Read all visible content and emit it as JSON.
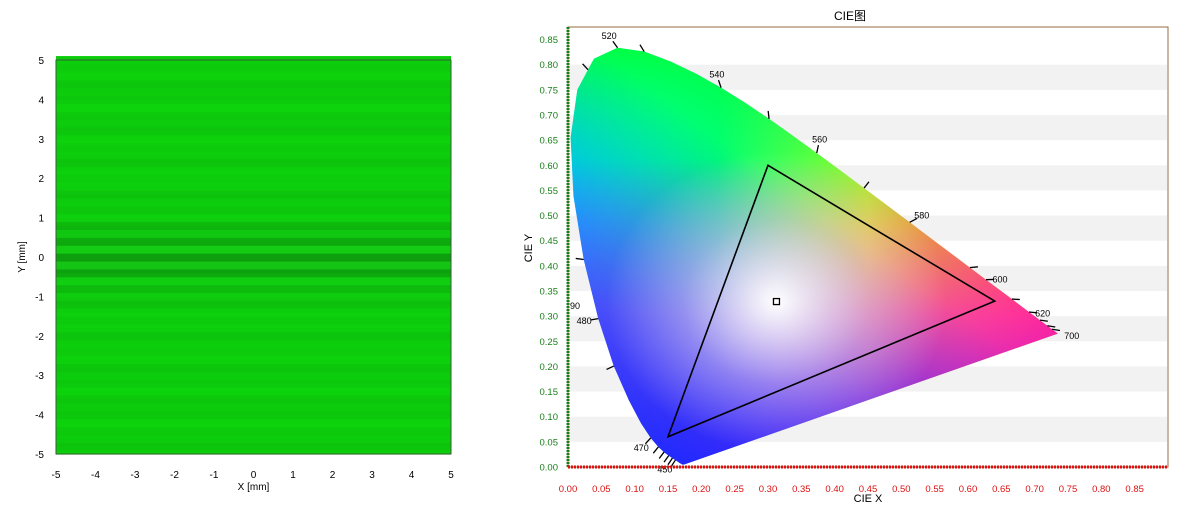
{
  "colors": {
    "field_green": "#0fd10f",
    "axis_green": "#1a7f1a",
    "axis_red": "#dd1111",
    "plot_border": "#8b5a2b",
    "band_gray": "#f2f2f2",
    "triangle": "#000000"
  },
  "chart_data": [
    {
      "type": "heatmap",
      "title": "",
      "xlabel": "X [mm]",
      "ylabel": "Y [mm]",
      "xlim": [
        -5,
        5
      ],
      "ylim": [
        -5,
        5
      ],
      "x_ticks": [
        "-5",
        "-4",
        "-3",
        "-2",
        "-1",
        "0",
        "1",
        "2",
        "3",
        "4",
        "5"
      ],
      "y_ticks": [
        "5",
        "4",
        "3",
        "2",
        "1",
        "0",
        "-1",
        "-2",
        "-3",
        "-4",
        "-5"
      ],
      "description_values": {
        "field_color": "green",
        "fringe_band_center_y_mm": 0,
        "fringe_band_half_width_mm": 0.8
      }
    },
    {
      "type": "scatter",
      "title": "CIE图",
      "xlabel": "CIE X",
      "ylabel": "CIE Y",
      "xlim": [
        0,
        0.9
      ],
      "ylim": [
        0,
        0.875
      ],
      "x_ticks": [
        "0.00",
        "0.05",
        "0.10",
        "0.15",
        "0.20",
        "0.25",
        "0.30",
        "0.35",
        "0.40",
        "0.45",
        "0.50",
        "0.55",
        "0.60",
        "0.65",
        "0.70",
        "0.75",
        "0.80",
        "0.85"
      ],
      "y_ticks": [
        "0.00",
        "0.05",
        "0.10",
        "0.15",
        "0.20",
        "0.25",
        "0.30",
        "0.35",
        "0.40",
        "0.45",
        "0.50",
        "0.55",
        "0.60",
        "0.65",
        "0.70",
        "0.75",
        "0.80",
        "0.85"
      ],
      "wavelength_labels": [
        {
          "text": "520",
          "x": 0.074,
          "y": 0.834
        },
        {
          "text": "540",
          "x": 0.23,
          "y": 0.754
        },
        {
          "text": "560",
          "x": 0.373,
          "y": 0.624
        },
        {
          "text": "580",
          "x": 0.512,
          "y": 0.487
        },
        {
          "text": "600",
          "x": 0.627,
          "y": 0.372
        },
        {
          "text": "620",
          "x": 0.691,
          "y": 0.308
        },
        {
          "text": "700",
          "x": 0.735,
          "y": 0.265
        },
        {
          "text": "90",
          "x": 0.0,
          "y": 0.32
        },
        {
          "text": "480",
          "x": 0.045,
          "y": 0.295
        },
        {
          "text": "470",
          "x": 0.124,
          "y": 0.058
        },
        {
          "text": "450",
          "x": 0.157,
          "y": 0.018
        }
      ],
      "gamut_triangle": {
        "red": {
          "x": 0.64,
          "y": 0.33
        },
        "green": {
          "x": 0.3,
          "y": 0.6
        },
        "blue": {
          "x": 0.15,
          "y": 0.06
        }
      },
      "point": {
        "x": 0.3127,
        "y": 0.329
      },
      "spectral_locus": [
        [
          0.1741,
          0.005
        ],
        [
          0.1738,
          0.0049
        ],
        [
          0.1736,
          0.0049
        ],
        [
          0.1733,
          0.0048
        ],
        [
          0.173,
          0.0048
        ],
        [
          0.1726,
          0.0048
        ],
        [
          0.1721,
          0.0048
        ],
        [
          0.1714,
          0.0051
        ],
        [
          0.1703,
          0.0058
        ],
        [
          0.1689,
          0.0069
        ],
        [
          0.1669,
          0.0086
        ],
        [
          0.1644,
          0.0109
        ],
        [
          0.1611,
          0.0138
        ],
        [
          0.1566,
          0.0177
        ],
        [
          0.151,
          0.0227
        ],
        [
          0.144,
          0.0297
        ],
        [
          0.1355,
          0.0399
        ],
        [
          0.1241,
          0.0578
        ],
        [
          0.1096,
          0.0868
        ],
        [
          0.0913,
          0.1327
        ],
        [
          0.0687,
          0.2007
        ],
        [
          0.0454,
          0.295
        ],
        [
          0.0235,
          0.4127
        ],
        [
          0.0082,
          0.5384
        ],
        [
          0.0039,
          0.6548
        ],
        [
          0.0139,
          0.7502
        ],
        [
          0.0389,
          0.812
        ],
        [
          0.0743,
          0.8338
        ],
        [
          0.1142,
          0.8262
        ],
        [
          0.1547,
          0.8059
        ],
        [
          0.1929,
          0.7816
        ],
        [
          0.2296,
          0.7543
        ],
        [
          0.2658,
          0.7243
        ],
        [
          0.3016,
          0.6923
        ],
        [
          0.3373,
          0.6589
        ],
        [
          0.3731,
          0.6245
        ],
        [
          0.4087,
          0.5896
        ],
        [
          0.4441,
          0.5547
        ],
        [
          0.4788,
          0.5202
        ],
        [
          0.5125,
          0.4866
        ],
        [
          0.5448,
          0.4544
        ],
        [
          0.5752,
          0.4242
        ],
        [
          0.6029,
          0.3965
        ],
        [
          0.627,
          0.3725
        ],
        [
          0.6482,
          0.3514
        ],
        [
          0.6658,
          0.334
        ],
        [
          0.6801,
          0.3197
        ],
        [
          0.6915,
          0.3083
        ],
        [
          0.7006,
          0.2993
        ],
        [
          0.7079,
          0.292
        ],
        [
          0.714,
          0.2859
        ],
        [
          0.719,
          0.2809
        ],
        [
          0.723,
          0.277
        ],
        [
          0.726,
          0.274
        ],
        [
          0.7283,
          0.2717
        ],
        [
          0.73,
          0.27
        ],
        [
          0.7311,
          0.2689
        ],
        [
          0.732,
          0.268
        ],
        [
          0.7327,
          0.2673
        ],
        [
          0.7334,
          0.2666
        ],
        [
          0.734,
          0.266
        ],
        [
          0.7344,
          0.2656
        ],
        [
          0.7346,
          0.2654
        ],
        [
          0.7347,
          0.2653
        ]
      ]
    }
  ]
}
